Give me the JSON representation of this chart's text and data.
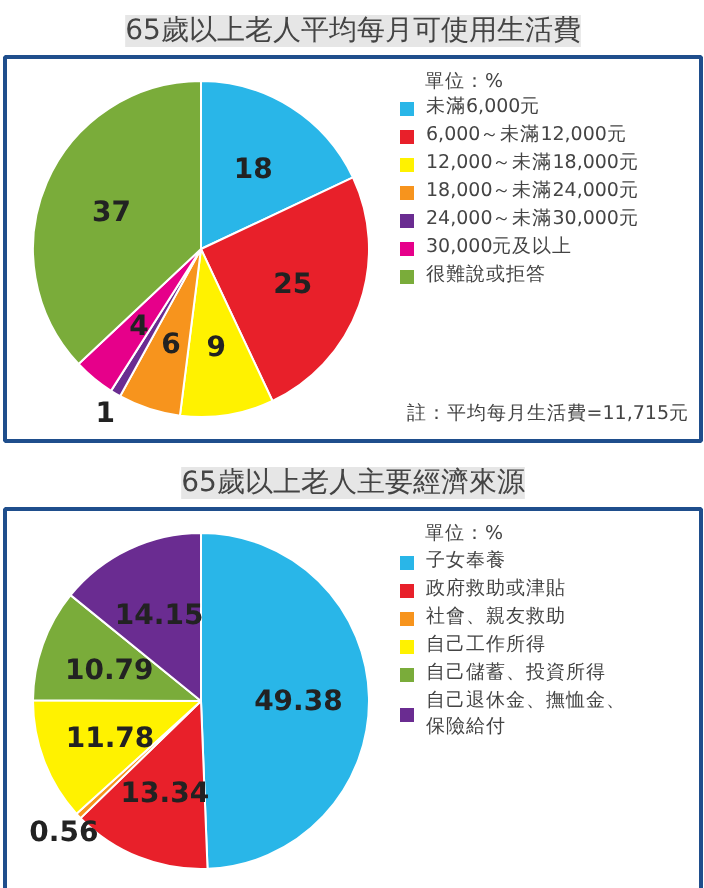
{
  "chart_data": [
    {
      "type": "pie",
      "title": "65歲以上老人平均每月可使用生活費",
      "categories": [
        "未滿6,000元",
        "6,000～未滿12,000元",
        "12,000～未滿18,000元",
        "18,000～未滿24,000元",
        "24,000～未滿30,000元",
        "30,000元及以上",
        "很難說或拒答"
      ],
      "values": [
        18,
        25,
        9,
        6,
        1,
        4,
        37
      ],
      "colors": [
        "#29b6e8",
        "#e8202a",
        "#fff200",
        "#f7941d",
        "#6a2c91",
        "#e6008a",
        "#7aac3a"
      ],
      "data_labels": true,
      "legend": "right",
      "annotations": [
        "單位：%",
        "註：平均每月生活費=11,715元"
      ]
    },
    {
      "type": "pie",
      "title": "65歲以上老人主要經濟來源",
      "categories": [
        "子女奉養",
        "政府救助或津貼",
        "社會、親友救助",
        "自己工作所得",
        "自己儲蓄、投資所得",
        "自己退休金、撫恤金、保險給付"
      ],
      "values": [
        49.38,
        13.34,
        0.56,
        11.78,
        10.79,
        14.15
      ],
      "colors": [
        "#29b6e8",
        "#e8202a",
        "#f7941d",
        "#fff200",
        "#7aac3a",
        "#6a2c91"
      ],
      "data_labels": true,
      "legend": "right",
      "annotations": [
        "單位：%"
      ]
    }
  ]
}
